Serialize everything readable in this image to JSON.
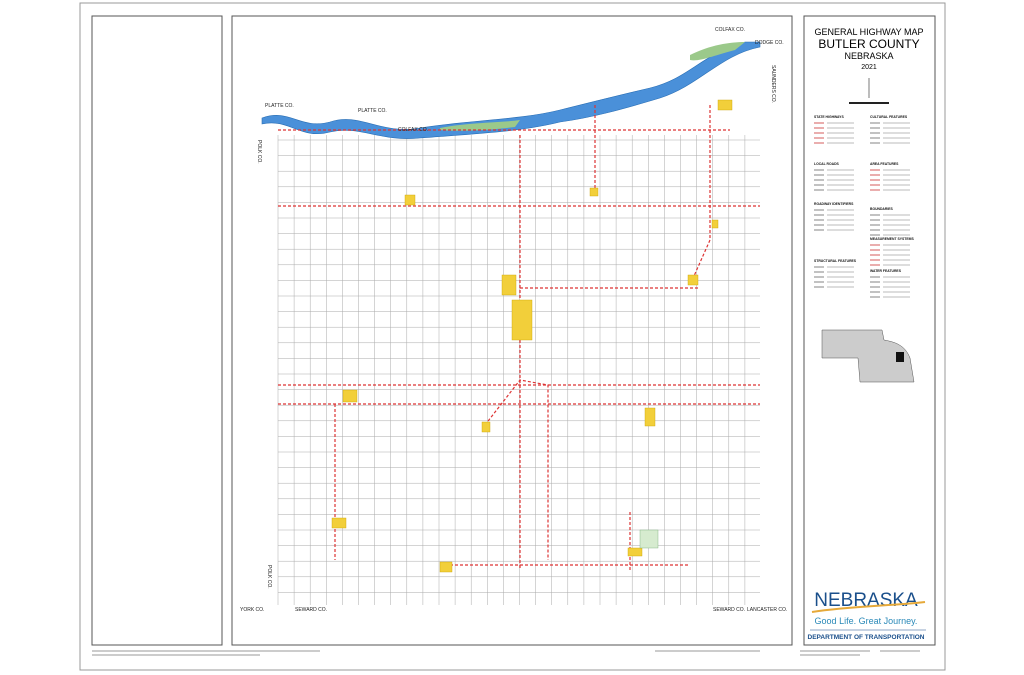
{
  "header": {
    "title": "GENERAL HIGHWAY MAP",
    "county": "BUTLER COUNTY",
    "state": "NEBRASKA",
    "year": "2021"
  },
  "counties": {
    "colfax_top": "COLFAX CO.",
    "dodge": "DODGE CO.",
    "platte_left": "PLATTE CO.",
    "platte_right": "PLATTE CO.",
    "colfax_mid": "COLFAX CO.",
    "saunders_top": "SAUNDERS CO.",
    "polk_top": "POLK CO.",
    "polk_bottom": "POLK CO.",
    "york": "YORK CO.",
    "seward_left": "SEWARD CO.",
    "seward_right": "SEWARD CO.",
    "lancaster": "LANCASTER CO."
  },
  "legend": {
    "sections": [
      "STATE HIGHWAYS",
      "CULTURAL FEATURES",
      "LOCAL ROADS",
      "AREA FEATURES",
      "ROADWAY IDENTIFIERS",
      "BOUNDARIES",
      "MEASUREMENT SYSTEMS",
      "STRUCTURAL FEATURES",
      "WATER FEATURES"
    ]
  },
  "logo": {
    "name": "NEBRASKA",
    "slogan": "Good Life. Great Journey.",
    "department": "DEPARTMENT OF TRANSPORTATION"
  }
}
